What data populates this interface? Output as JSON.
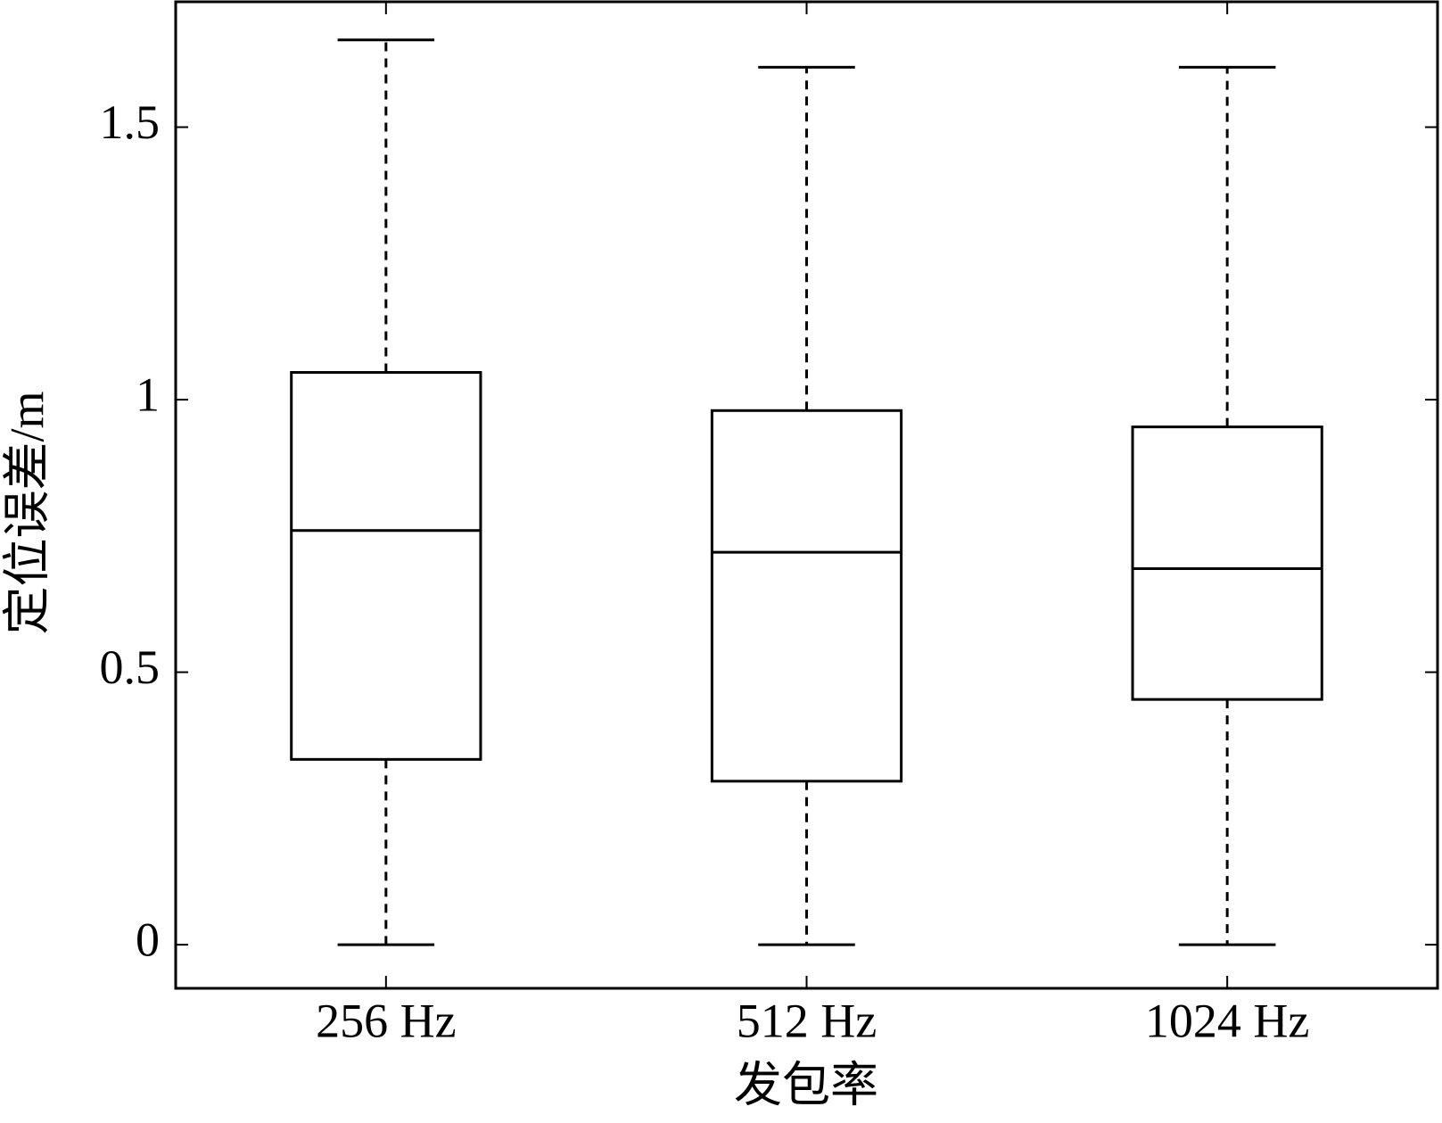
{
  "chart_data": {
    "type": "box",
    "x_label": "发包率",
    "y_label": "定位误差/m",
    "categories": [
      "256 Hz",
      "512 Hz",
      "1024 Hz"
    ],
    "boxes": [
      {
        "whisker_low": 0,
        "q1": 0.34,
        "median": 0.76,
        "q3": 1.05,
        "whisker_high": 1.66
      },
      {
        "whisker_low": 0,
        "q1": 0.3,
        "median": 0.72,
        "q3": 0.98,
        "whisker_high": 1.61
      },
      {
        "whisker_low": 0,
        "q1": 0.45,
        "median": 0.69,
        "q3": 0.95,
        "whisker_high": 1.61
      }
    ],
    "color": "#000000",
    "ylim": [
      -0.08,
      1.73
    ],
    "yticks": [
      0,
      0.5,
      1,
      1.5
    ],
    "grid": false
  }
}
